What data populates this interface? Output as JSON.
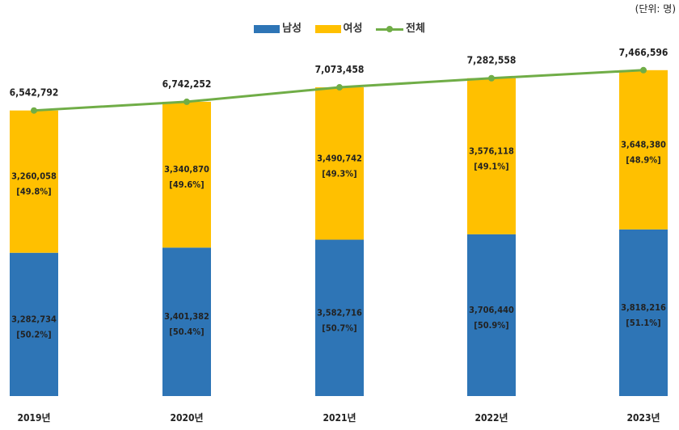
{
  "unit_label": "(단위: 명)",
  "legend": {
    "male": "남성",
    "female": "여성",
    "total": "전체"
  },
  "colors": {
    "male": "#2e75b6",
    "female": "#ffc000",
    "total": "#70ad47"
  },
  "chart_data": {
    "type": "bar",
    "stacked": true,
    "categories": [
      "2019년",
      "2020년",
      "2021년",
      "2022년",
      "2023년"
    ],
    "series": [
      {
        "name": "남성",
        "values": [
          3282734,
          3401382,
          3582716,
          3706440,
          3818216
        ],
        "value_labels": [
          "3,282,734",
          "3,401,382",
          "3,582,716",
          "3,706,440",
          "3,818,216"
        ],
        "share_labels": [
          "[50.2%]",
          "[50.4%]",
          "[50.7%]",
          "[50.9%]",
          "[51.1%]"
        ]
      },
      {
        "name": "여성",
        "values": [
          3260058,
          3340870,
          3490742,
          3576118,
          3648380
        ],
        "value_labels": [
          "3,260,058",
          "3,340,870",
          "3,490,742",
          "3,576,118",
          "3,648,380"
        ],
        "share_labels": [
          "[49.8%]",
          "[49.6%]",
          "[49.3%]",
          "[49.1%]",
          "[48.9%]"
        ]
      }
    ],
    "line_series": {
      "name": "전체",
      "type": "line",
      "values": [
        6542792,
        6742252,
        7073458,
        7282558,
        7466596
      ],
      "value_labels": [
        "6,542,792",
        "6,742,252",
        "7,073,458",
        "7,282,558",
        "7,466,596"
      ]
    },
    "ylim": [
      0,
      7500000
    ],
    "grid": false,
    "legend_position": "top-center",
    "xlabel": "",
    "ylabel": ""
  }
}
